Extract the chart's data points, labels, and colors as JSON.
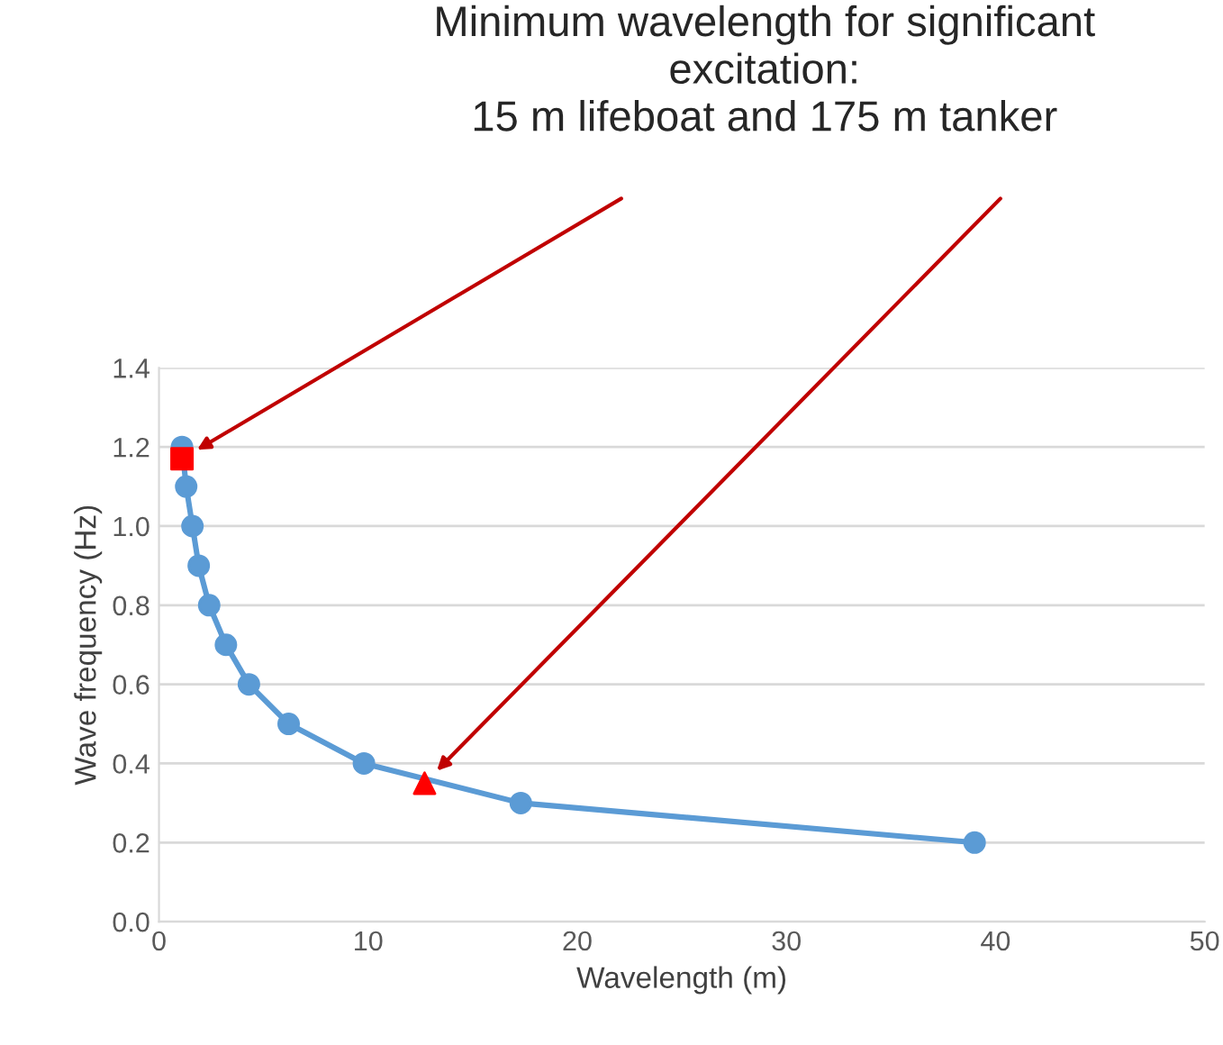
{
  "chart_data": {
    "type": "line",
    "xlabel": "Wavelength (m)",
    "ylabel": "Wave frequency (Hz)",
    "annotations": [
      "Minimum wavelength for significant\nexcitation:\n15 m lifeboat and 175 m tanker"
    ],
    "series": [
      {
        "color": "#5b9bd5",
        "marker": "circle",
        "x": [
          1.1,
          1.3,
          1.6,
          1.9,
          2.4,
          3.2,
          4.3,
          6.2,
          9.8,
          17.3,
          39.0
        ],
        "values": [
          1.2,
          1.1,
          1.0,
          0.9,
          0.8,
          0.7,
          0.6,
          0.5,
          0.4,
          0.3,
          0.2
        ]
      },
      {
        "type": "scatter",
        "color": "#ff0000",
        "marker": "square",
        "x": [
          1.1
        ],
        "values": [
          1.17
        ]
      },
      {
        "type": "scatter",
        "color": "#ff0000",
        "marker": "triangle",
        "x": [
          12.7
        ],
        "values": [
          0.35
        ]
      }
    ],
    "xlim": [
      0,
      50
    ],
    "xticks": [
      0,
      10,
      20,
      30,
      40,
      50
    ],
    "ylim": [
      0,
      1.4
    ],
    "yticks": [
      {
        "value": 0,
        "label": "0.0"
      },
      {
        "value": 0.2,
        "label": "0.2"
      },
      {
        "value": 0.4,
        "label": "0.4"
      },
      {
        "value": 0.6,
        "label": "0.6"
      },
      {
        "value": 0.8,
        "label": "0.8"
      },
      {
        "value": 1.0,
        "label": "1.0"
      },
      {
        "value": 1.2,
        "label": "1.2"
      },
      {
        "value": 1.4,
        "label": "1.4"
      }
    ],
    "grid": "y",
    "line_style": "solid"
  }
}
